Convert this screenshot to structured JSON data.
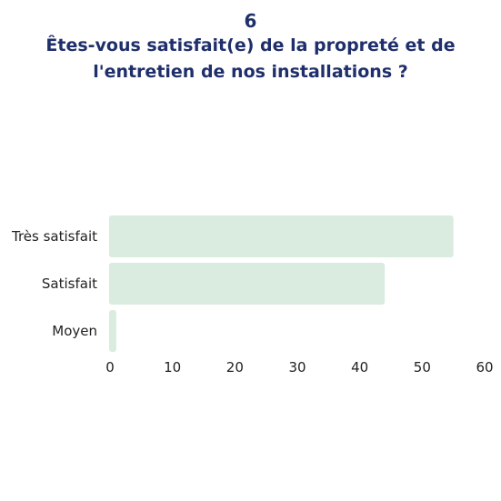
{
  "chart_data": {
    "type": "bar",
    "orientation": "horizontal",
    "title_number": "6",
    "title": [
      "Êtes-vous satisfait(e) de la propreté et de",
      "l'entretien de nos installations ?"
    ],
    "categories": [
      "Très satisfait",
      "Satisfait",
      "Moyen"
    ],
    "values": [
      55,
      44,
      1
    ],
    "xlim": [
      0,
      60
    ],
    "xticks": [
      "0",
      "10",
      "20",
      "30",
      "40",
      "50",
      "60"
    ],
    "grid": false,
    "bar_color": "#d9ecdf",
    "title_color": "#1f2f6b"
  }
}
